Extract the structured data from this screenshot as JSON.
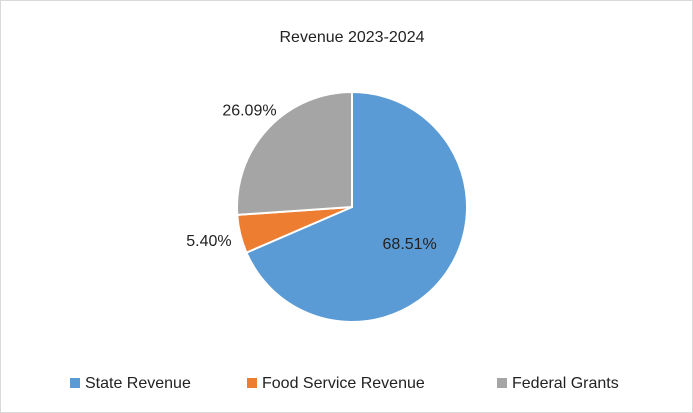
{
  "chart_data": {
    "type": "pie",
    "title": "Revenue 2023-2024",
    "categories": [
      "State Revenue",
      "Food Service Revenue",
      "Federal Grants"
    ],
    "values": [
      68.51,
      5.4,
      26.09
    ],
    "value_labels": [
      "68.51%",
      "5.40%",
      "26.09%"
    ],
    "colors": [
      "#5b9bd5",
      "#ed7d31",
      "#a5a5a5"
    ],
    "legend": "bottom"
  }
}
